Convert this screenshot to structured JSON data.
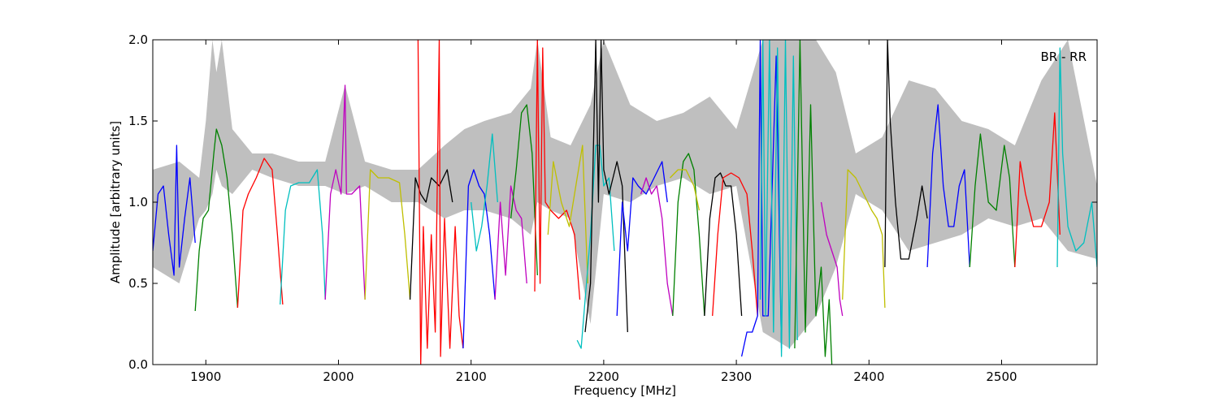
{
  "chart_data": {
    "type": "line",
    "title": "",
    "xlabel": "Frequency [MHz]",
    "ylabel": "Amplitude [arbitrary units]",
    "xlim": [
      1860,
      2572
    ],
    "ylim": [
      0.0,
      2.0
    ],
    "xticks": [
      1900,
      2000,
      2100,
      2200,
      2300,
      2400,
      2500
    ],
    "yticks": [
      0.0,
      0.5,
      1.0,
      1.5,
      2.0
    ],
    "x_tick_labels": [
      "1900",
      "2000",
      "2100",
      "2200",
      "2300",
      "2400",
      "2500"
    ],
    "y_tick_labels": [
      "0.0",
      "0.5",
      "1.0",
      "1.5",
      "2.0"
    ],
    "grid": false,
    "annotation": "BR - RR",
    "annotation_placement": "top-right",
    "background_band": {
      "color": "#bfbfbf",
      "x": [
        1860,
        1880,
        1895,
        1900,
        1905,
        1908,
        1912,
        1920,
        1935,
        1950,
        1970,
        1990,
        2005,
        2020,
        2040,
        2060,
        2080,
        2095,
        2110,
        2130,
        2145,
        2150,
        2160,
        2175,
        2190,
        2200,
        2220,
        2240,
        2260,
        2280,
        2300,
        2320,
        2340,
        2360,
        2375,
        2390,
        2410,
        2430,
        2450,
        2470,
        2490,
        2510,
        2530,
        2550,
        2572
      ],
      "upper": [
        1.2,
        1.25,
        1.15,
        1.5,
        2.0,
        1.8,
        2.0,
        1.45,
        1.3,
        1.3,
        1.25,
        1.25,
        1.72,
        1.25,
        1.2,
        1.2,
        1.35,
        1.45,
        1.5,
        1.55,
        1.7,
        2.0,
        1.4,
        1.35,
        1.6,
        2.0,
        1.6,
        1.5,
        1.55,
        1.65,
        1.45,
        2.0,
        2.0,
        2.0,
        1.8,
        1.3,
        1.4,
        1.75,
        1.7,
        1.5,
        1.45,
        1.35,
        1.75,
        2.0,
        1.1
      ],
      "lower": [
        0.6,
        0.5,
        0.9,
        0.95,
        1.05,
        1.2,
        1.1,
        1.05,
        1.2,
        1.15,
        1.1,
        1.1,
        1.05,
        1.1,
        1.0,
        1.0,
        0.9,
        0.95,
        0.95,
        0.9,
        0.8,
        1.0,
        0.95,
        0.9,
        0.25,
        1.05,
        1.0,
        1.1,
        1.15,
        1.05,
        1.1,
        0.2,
        0.1,
        0.3,
        0.6,
        1.05,
        0.95,
        0.7,
        0.75,
        0.8,
        0.9,
        0.85,
        0.9,
        0.7,
        0.65
      ]
    },
    "series": [
      {
        "color": "#0000ff",
        "x": [
          1860,
          1864,
          1868,
          1872,
          1876,
          1878,
          1880,
          1884,
          1888,
          1892
        ],
        "y": [
          0.7,
          1.05,
          1.1,
          0.8,
          0.55,
          1.35,
          0.6,
          0.9,
          1.15,
          0.75
        ]
      },
      {
        "color": "#008000",
        "x": [
          1892,
          1895,
          1898,
          1902,
          1906,
          1908,
          1912,
          1916,
          1920,
          1924
        ],
        "y": [
          0.33,
          0.7,
          0.9,
          0.95,
          1.3,
          1.45,
          1.35,
          1.15,
          0.8,
          0.35
        ]
      },
      {
        "color": "#ff0000",
        "x": [
          1924,
          1928,
          1932,
          1938,
          1944,
          1950,
          1954,
          1958
        ],
        "y": [
          0.35,
          0.95,
          1.05,
          1.15,
          1.27,
          1.2,
          0.8,
          0.37
        ]
      },
      {
        "color": "#00bfbf",
        "x": [
          1956,
          1960,
          1964,
          1970,
          1978,
          1984,
          1988,
          1990
        ],
        "y": [
          0.37,
          0.95,
          1.1,
          1.12,
          1.12,
          1.2,
          0.8,
          0.4
        ]
      },
      {
        "color": "#bf00bf",
        "x": [
          1990,
          1994,
          1998,
          2002,
          2005,
          2006,
          2010,
          2016,
          2020
        ],
        "y": [
          0.4,
          1.05,
          1.2,
          1.05,
          1.72,
          1.05,
          1.05,
          1.1,
          0.4
        ]
      },
      {
        "color": "#bfbf00",
        "x": [
          2020,
          2024,
          2030,
          2038,
          2046,
          2050,
          2054
        ],
        "y": [
          0.4,
          1.2,
          1.15,
          1.15,
          1.12,
          0.8,
          0.4
        ]
      },
      {
        "color": "#000000",
        "x": [
          2054,
          2058,
          2062,
          2066,
          2070,
          2076,
          2082,
          2086
        ],
        "y": [
          0.4,
          1.15,
          1.05,
          1.0,
          1.15,
          1.1,
          1.2,
          1.0
        ]
      },
      {
        "color": "#ff0000",
        "x": [
          2060,
          2062,
          2064,
          2067,
          2070,
          2073,
          2076,
          2077,
          2080,
          2084,
          2088,
          2091,
          2094
        ],
        "y": [
          2.0,
          0.0,
          0.85,
          0.1,
          0.8,
          0.2,
          2.0,
          0.05,
          0.9,
          0.1,
          0.85,
          0.3,
          0.1
        ]
      },
      {
        "color": "#0000ff",
        "x": [
          2094,
          2098,
          2102,
          2106,
          2110,
          2114,
          2118
        ],
        "y": [
          0.1,
          1.1,
          1.2,
          1.1,
          1.05,
          0.8,
          0.4
        ]
      },
      {
        "color": "#00bfbf",
        "x": [
          2100,
          2104,
          2108,
          2112,
          2116,
          2120
        ],
        "y": [
          1.0,
          0.7,
          0.85,
          1.1,
          1.42,
          1.0
        ]
      },
      {
        "color": "#bf00bf",
        "x": [
          2118,
          2122,
          2126,
          2130,
          2134,
          2138,
          2142
        ],
        "y": [
          0.4,
          1.0,
          0.55,
          1.1,
          0.95,
          0.9,
          0.5
        ]
      },
      {
        "color": "#008000",
        "x": [
          2130,
          2134,
          2138,
          2142,
          2146,
          2150
        ],
        "y": [
          0.9,
          1.2,
          1.55,
          1.6,
          1.3,
          0.55
        ]
      },
      {
        "color": "#ff0000",
        "x": [
          2148,
          2150,
          2152,
          2154,
          2156,
          2160,
          2166,
          2172,
          2178,
          2182
        ],
        "y": [
          0.45,
          2.0,
          0.5,
          1.95,
          1.0,
          0.95,
          0.9,
          0.95,
          0.8,
          0.4
        ]
      },
      {
        "color": "#bfbf00",
        "x": [
          2158,
          2162,
          2168,
          2174,
          2180,
          2184,
          2188
        ],
        "y": [
          0.8,
          1.25,
          1.0,
          0.85,
          1.15,
          1.35,
          0.5
        ]
      },
      {
        "color": "#00bfbf",
        "x": [
          2180,
          2183,
          2186,
          2190,
          2194,
          2197,
          2200,
          2204,
          2208
        ],
        "y": [
          0.15,
          0.1,
          0.4,
          0.8,
          1.35,
          1.35,
          1.1,
          1.15,
          0.7
        ]
      },
      {
        "color": "#000000",
        "x": [
          2186,
          2190,
          2194,
          2196,
          2198,
          2200,
          2204,
          2210,
          2214,
          2218
        ],
        "y": [
          0.2,
          0.5,
          2.0,
          1.0,
          2.0,
          1.2,
          1.05,
          1.25,
          1.1,
          0.2
        ]
      },
      {
        "color": "#0000ff",
        "x": [
          2210,
          2214,
          2218,
          2222,
          2226,
          2232,
          2238,
          2244,
          2248
        ],
        "y": [
          0.3,
          1.0,
          0.7,
          1.15,
          1.1,
          1.05,
          1.15,
          1.25,
          1.0
        ]
      },
      {
        "color": "#bf00bf",
        "x": [
          2228,
          2232,
          2236,
          2240,
          2244,
          2248,
          2252
        ],
        "y": [
          1.05,
          1.15,
          1.05,
          1.1,
          0.9,
          0.5,
          0.3
        ]
      },
      {
        "color": "#008000",
        "x": [
          2252,
          2256,
          2260,
          2264,
          2268,
          2272,
          2276
        ],
        "y": [
          0.3,
          1.0,
          1.25,
          1.3,
          1.2,
          0.8,
          0.3
        ]
      },
      {
        "color": "#bfbf00",
        "x": [
          2250,
          2256,
          2262,
          2268,
          2272
        ],
        "y": [
          1.15,
          1.2,
          1.2,
          1.1,
          0.95
        ]
      },
      {
        "color": "#000000",
        "x": [
          2276,
          2280,
          2284,
          2288,
          2292,
          2296,
          2300,
          2304
        ],
        "y": [
          0.3,
          0.9,
          1.15,
          1.18,
          1.1,
          1.1,
          0.8,
          0.3
        ]
      },
      {
        "color": "#ff0000",
        "x": [
          2282,
          2286,
          2290,
          2296,
          2302,
          2308,
          2312,
          2316
        ],
        "y": [
          0.3,
          0.8,
          1.15,
          1.18,
          1.15,
          1.05,
          0.7,
          0.3
        ]
      },
      {
        "color": "#0000ff",
        "x": [
          2304,
          2308,
          2312,
          2316,
          2318,
          2320,
          2324,
          2330,
          2334
        ],
        "y": [
          0.05,
          0.2,
          0.2,
          0.3,
          2.0,
          0.3,
          0.3,
          1.9,
          0.1
        ]
      },
      {
        "color": "#00bfbf",
        "x": [
          2318,
          2320,
          2322,
          2325,
          2328,
          2331,
          2334,
          2337,
          2340,
          2343,
          2346
        ],
        "y": [
          0.4,
          2.0,
          0.3,
          2.0,
          0.2,
          1.95,
          0.05,
          2.0,
          0.1,
          1.9,
          0.15
        ]
      },
      {
        "color": "#008000",
        "x": [
          2344,
          2348,
          2352,
          2356,
          2360,
          2364,
          2367,
          2370,
          2372
        ],
        "y": [
          0.1,
          2.0,
          0.2,
          1.6,
          0.3,
          0.6,
          0.05,
          0.4,
          0.0
        ]
      },
      {
        "color": "#bf00bf",
        "x": [
          2364,
          2368,
          2372,
          2376,
          2378,
          2380
        ],
        "y": [
          1.0,
          0.8,
          0.7,
          0.6,
          0.4,
          0.3
        ]
      },
      {
        "color": "#bfbf00",
        "x": [
          2380,
          2384,
          2390,
          2396,
          2402,
          2406,
          2410,
          2412
        ],
        "y": [
          0.4,
          1.2,
          1.15,
          1.05,
          0.95,
          0.9,
          0.8,
          0.35
        ]
      },
      {
        "color": "#000000",
        "x": [
          2412,
          2414,
          2416,
          2420,
          2424,
          2430,
          2436,
          2440,
          2444
        ],
        "y": [
          0.6,
          2.0,
          1.5,
          1.0,
          0.65,
          0.65,
          0.9,
          1.1,
          0.9
        ]
      },
      {
        "color": "#0000ff",
        "x": [
          2444,
          2448,
          2452,
          2456,
          2460,
          2464,
          2468,
          2472,
          2476
        ],
        "y": [
          0.6,
          1.3,
          1.6,
          1.1,
          0.85,
          0.85,
          1.1,
          1.2,
          0.6
        ]
      },
      {
        "color": "#008000",
        "x": [
          2476,
          2480,
          2484,
          2490,
          2496,
          2502,
          2506,
          2510
        ],
        "y": [
          0.6,
          1.1,
          1.42,
          1.0,
          0.95,
          1.35,
          1.15,
          0.6
        ]
      },
      {
        "color": "#ff0000",
        "x": [
          2510,
          2514,
          2518,
          2524,
          2530,
          2536,
          2540,
          2544
        ],
        "y": [
          0.6,
          1.25,
          1.05,
          0.85,
          0.85,
          1.0,
          1.55,
          0.8
        ]
      },
      {
        "color": "#00bfbf",
        "x": [
          2542,
          2544,
          2546,
          2550,
          2556,
          2562,
          2568,
          2572
        ],
        "y": [
          0.6,
          1.95,
          1.3,
          0.85,
          0.7,
          0.75,
          1.0,
          0.6
        ]
      }
    ]
  }
}
